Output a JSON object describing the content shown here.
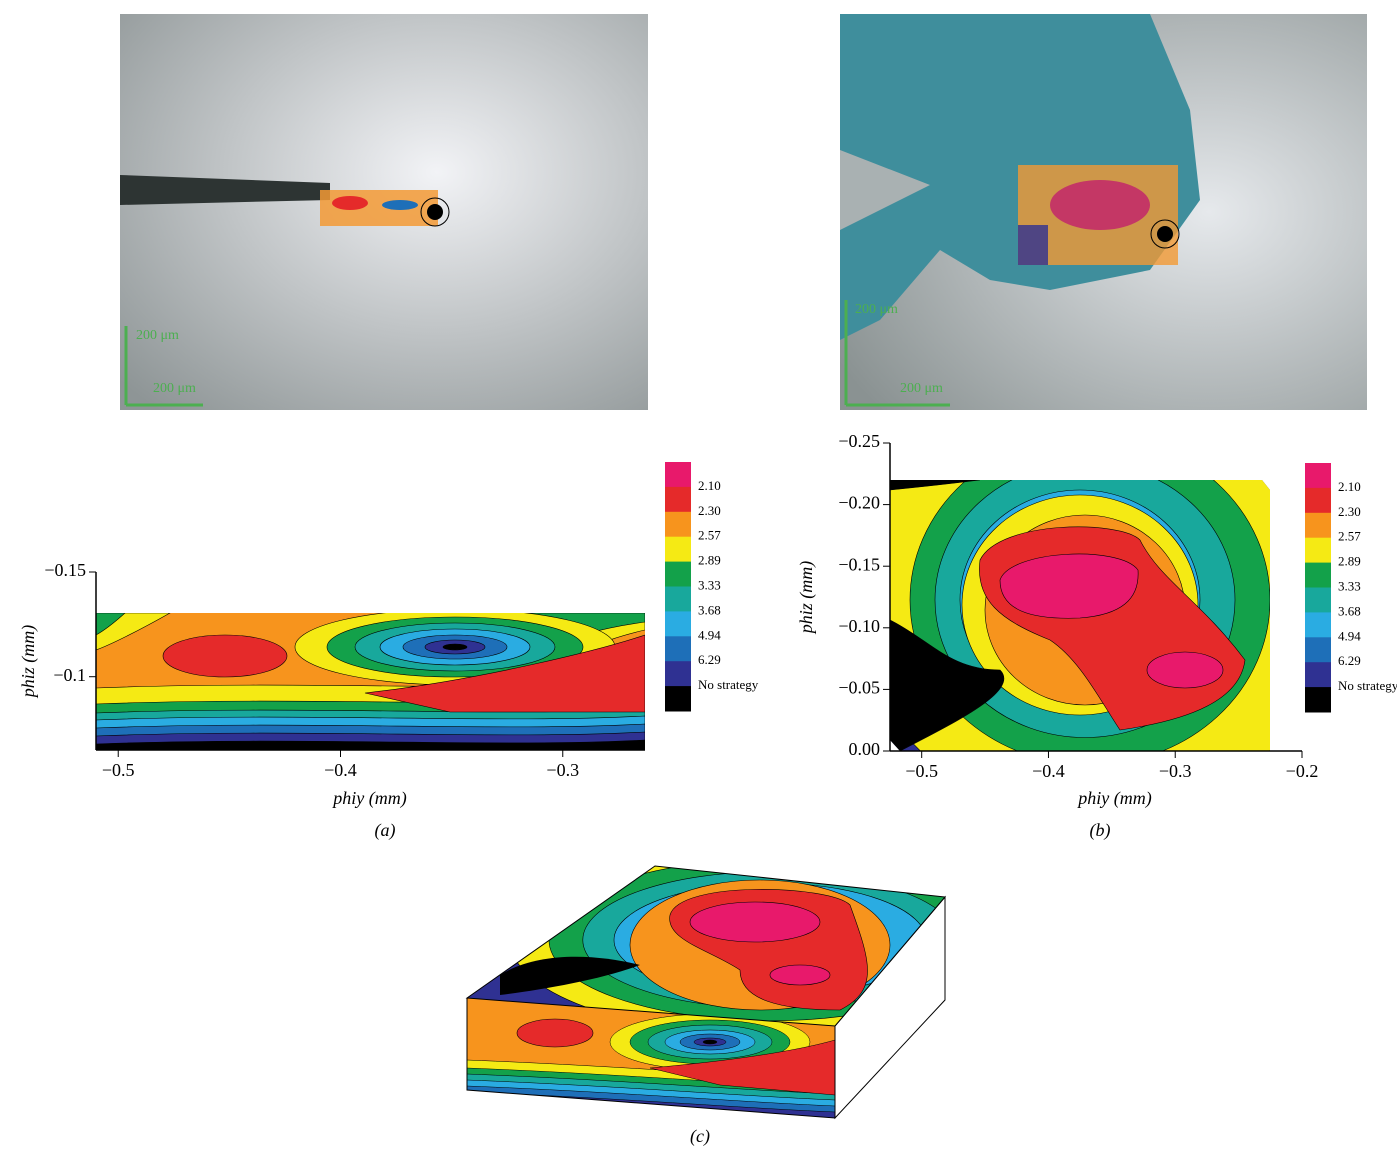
{
  "photos": [
    {
      "scale_labels": [
        "200 μm",
        "200 μm"
      ]
    },
    {
      "scale_labels": [
        "200 μm",
        "200 μm"
      ]
    }
  ],
  "chart_data": [
    {
      "type": "contour",
      "label": "(a)",
      "xlabel": "phiy (mm)",
      "ylabel": "phiz (mm)",
      "xlim": [
        -0.51,
        -0.263
      ],
      "ylim": [
        -0.065,
        -0.15
      ],
      "xticks": [
        {
          "value": -0.5,
          "label": "−0.5"
        },
        {
          "value": -0.4,
          "label": "−0.4"
        },
        {
          "value": -0.3,
          "label": "−0.3"
        }
      ],
      "yticks": [
        {
          "value": -0.15,
          "label": "−0.15"
        },
        {
          "value": -0.1,
          "label": "−0.1"
        }
      ],
      "levels": [
        "2.10",
        "2.30",
        "2.57",
        "2.89",
        "3.33",
        "3.68",
        "4.94",
        "6.29",
        "No strategy"
      ],
      "colors": [
        "#e8196b",
        "#e52a2a",
        "#f7941d",
        "#f5ea14",
        "#13a14a",
        "#18a89c",
        "#2aace2",
        "#1e6fb8",
        "#2f3192",
        "#000000"
      ]
    },
    {
      "type": "contour",
      "label": "(b)",
      "xlabel": "phiy (mm)",
      "ylabel": "phiz (mm)",
      "xlim": [
        -0.525,
        -0.2
      ],
      "ylim": [
        0,
        -0.25
      ],
      "xticks": [
        {
          "value": -0.5,
          "label": "−0.5"
        },
        {
          "value": -0.4,
          "label": "−0.4"
        },
        {
          "value": -0.3,
          "label": "−0.3"
        },
        {
          "value": -0.2,
          "label": "−0.2"
        }
      ],
      "yticks": [
        {
          "value": -0.25,
          "label": "−0.25"
        },
        {
          "value": -0.2,
          "label": "−0.20"
        },
        {
          "value": -0.15,
          "label": "−0.15"
        },
        {
          "value": -0.1,
          "label": "−0.10"
        },
        {
          "value": -0.05,
          "label": "−0.05"
        },
        {
          "value": 0,
          "label": "0.00"
        }
      ],
      "levels": [
        "2.10",
        "2.30",
        "2.57",
        "2.89",
        "3.33",
        "3.68",
        "4.94",
        "6.29",
        "No strategy"
      ],
      "colors": [
        "#e8196b",
        "#e52a2a",
        "#f7941d",
        "#f5ea14",
        "#13a14a",
        "#18a89c",
        "#2aace2",
        "#1e6fb8",
        "#2f3192",
        "#000000"
      ]
    }
  ],
  "panel_c": {
    "label": "(c)"
  }
}
